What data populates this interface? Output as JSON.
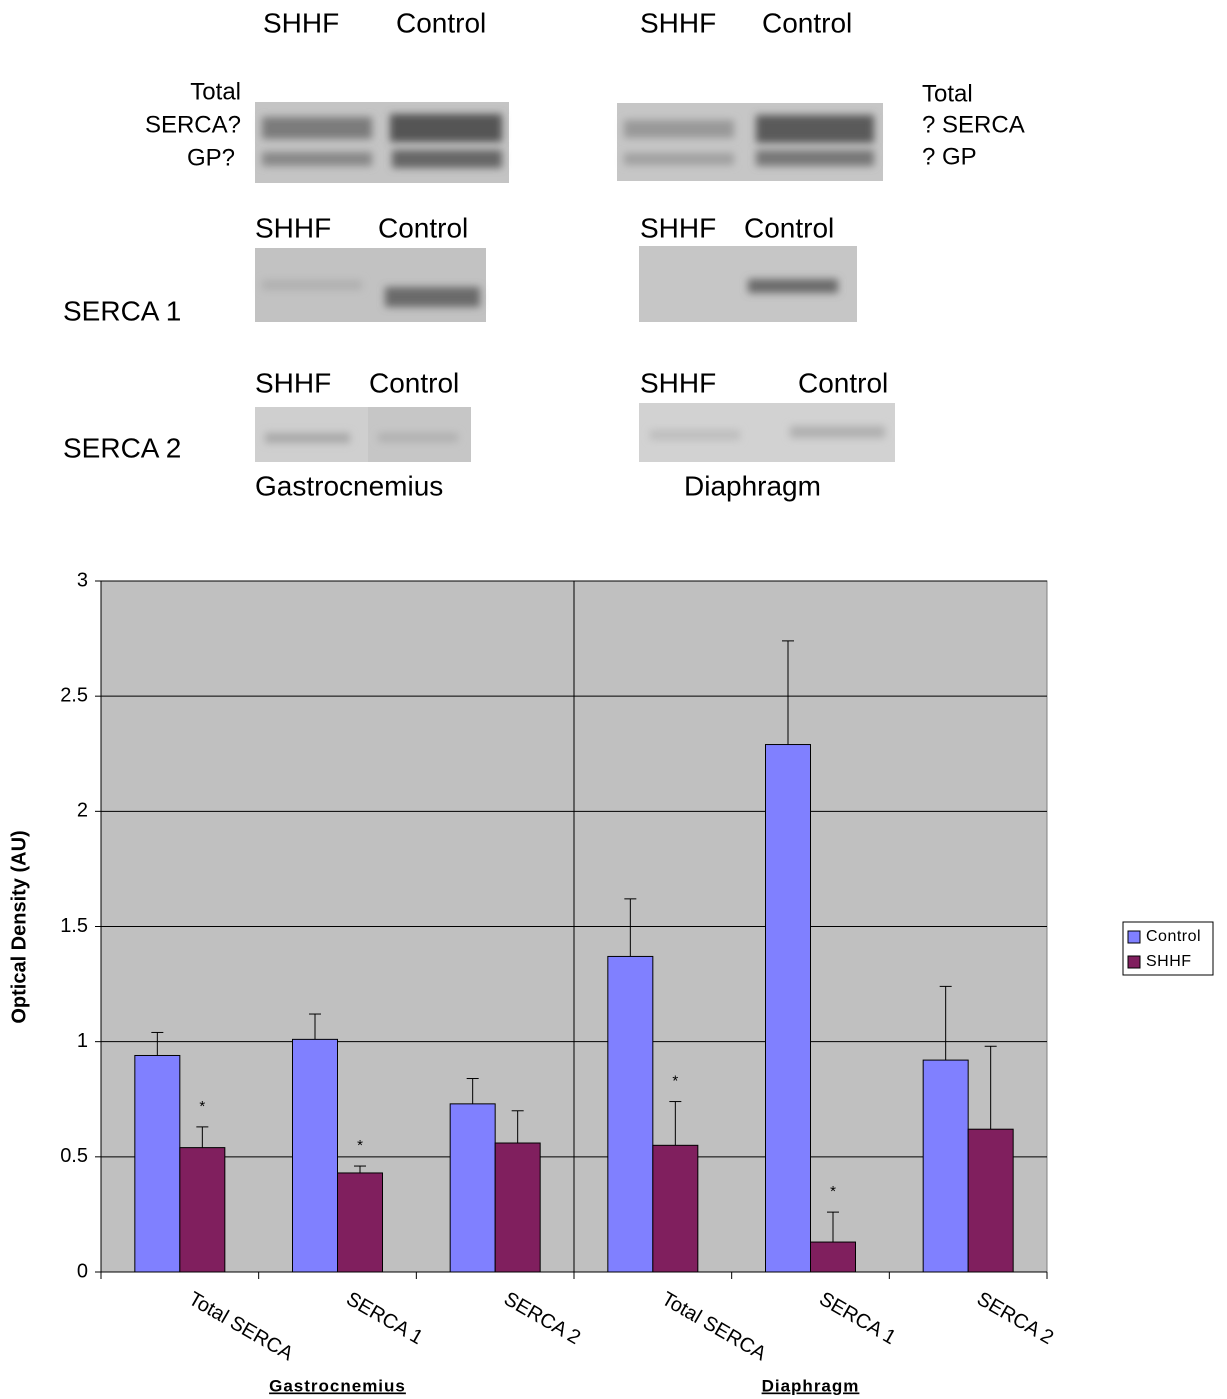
{
  "blots": {
    "total": {
      "left_headers": [
        "SHHF",
        "Control"
      ],
      "right_headers": [
        "SHHF",
        "Control"
      ],
      "left_labels": [
        "Total",
        "SERCA?",
        "GP?"
      ],
      "right_labels": [
        "Total",
        "? SERCA",
        "? GP"
      ]
    },
    "serca1": {
      "label": "SERCA 1",
      "left_headers": [
        "SHHF",
        "Control"
      ],
      "right_headers": [
        "SHHF",
        "Control"
      ]
    },
    "serca2": {
      "label": "SERCA 2",
      "left_headers": [
        "SHHF",
        "Control"
      ],
      "right_headers": [
        "SHHF",
        "Control"
      ]
    },
    "tissues": [
      "Gastrocnemius",
      "Diaphragm"
    ]
  },
  "chart_data": {
    "type": "bar",
    "y_label": "Optical Density (AU)",
    "groups": [
      {
        "name": "Gastrocnemius",
        "categories": [
          "Total SERCA",
          "SERCA 1",
          "SERCA 2"
        ]
      },
      {
        "name": "Diaphragm",
        "categories": [
          "Total SERCA",
          "SERCA 1",
          "SERCA 2"
        ]
      }
    ],
    "series": [
      {
        "name": "Control",
        "color": "#8080ff",
        "values": [
          0.94,
          1.01,
          0.73,
          1.37,
          2.29,
          0.92
        ],
        "errors": [
          0.1,
          0.11,
          0.11,
          0.25,
          0.45,
          0.32
        ]
      },
      {
        "name": "SHHF",
        "color": "#801f5e",
        "values": [
          0.54,
          0.43,
          0.56,
          0.55,
          0.13,
          0.62
        ],
        "errors": [
          0.09,
          0.03,
          0.14,
          0.19,
          0.13,
          0.36
        ],
        "markers": [
          "*",
          "*",
          null,
          "*",
          "*",
          null
        ]
      }
    ],
    "ylim": [
      0,
      3
    ],
    "yticks": [
      0,
      0.5,
      1,
      1.5,
      2,
      2.5,
      3
    ],
    "grid": true,
    "legend": "right"
  }
}
